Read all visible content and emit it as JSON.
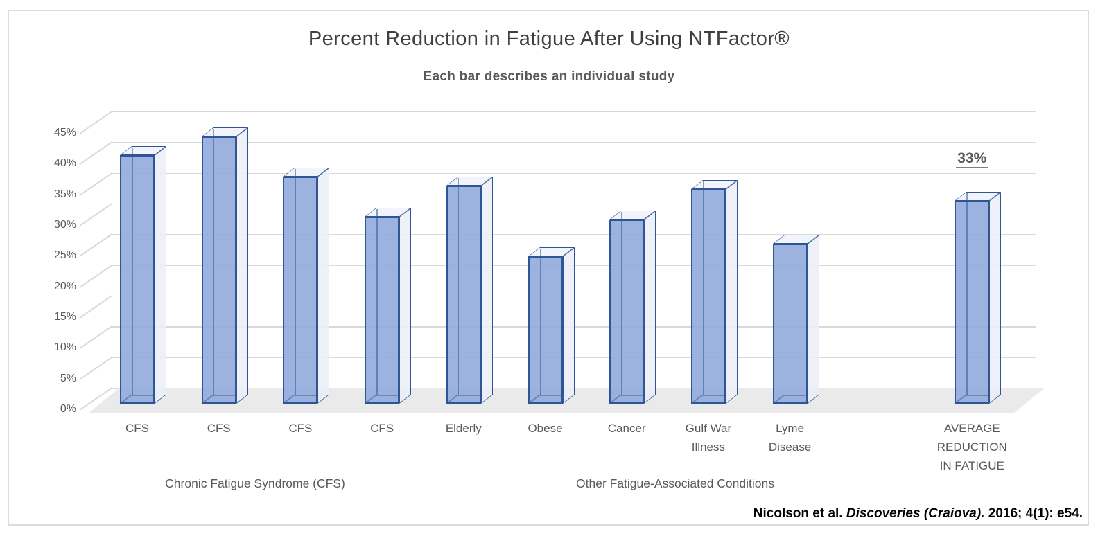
{
  "page": {
    "background": "#ffffff",
    "frame_border_color": "#dcdcdc"
  },
  "chart_data": {
    "type": "bar",
    "style": "3d-column",
    "title": "Percent Reduction in Fatigue After Using NTFactor®",
    "subtitle": "Each bar describes an individual study",
    "legend": "none",
    "y_axis": {
      "unit": "%",
      "min": 0,
      "max": 45,
      "tick_step": 5,
      "gridlines": true,
      "ticks": [
        "0%",
        "5%",
        "10%",
        "15%",
        "20%",
        "25%",
        "30%",
        "35%",
        "40%",
        "45%"
      ]
    },
    "bars": [
      {
        "label": "CFS",
        "value": 40.5,
        "group": "cfs"
      },
      {
        "label": "CFS",
        "value": 43.5,
        "group": "cfs"
      },
      {
        "label": "CFS",
        "value": 37,
        "group": "cfs"
      },
      {
        "label": "CFS",
        "value": 30.5,
        "group": "cfs"
      },
      {
        "label": "Elderly",
        "value": 35.5,
        "group": "other"
      },
      {
        "label": "Obese",
        "value": 24,
        "group": "other"
      },
      {
        "label": "Cancer",
        "value": 30,
        "group": "other"
      },
      {
        "label": "Gulf War\nIllness",
        "value": 35,
        "group": "other"
      },
      {
        "label": "Lyme\nDisease",
        "value": 26,
        "group": "other"
      },
      {
        "label": "AVERAGE\nREDUCTION\nIN FATIGUE",
        "value": 33,
        "group": "average",
        "data_label": "33%"
      }
    ],
    "group_labels": [
      {
        "text": "Chronic Fatigue Syndrome (CFS)"
      },
      {
        "text": "Other Fatigue-Associated Conditions"
      }
    ],
    "colors": {
      "bar_front": "#8EA9DB",
      "bar_side": "#EBEEF7",
      "bar_top": "#F0F3FA",
      "bar_edge": "#2F5597",
      "gridline": "#D9D9D9",
      "floor": "#EAEAEA",
      "axis_text": "#595959",
      "title_text": "#3F3F3F",
      "data_label_text": "#595959"
    }
  },
  "citation": {
    "author": "Nicolson et al. ",
    "journal": "Discoveries (Craiova). ",
    "issue": "2016; 4(1): e54."
  }
}
